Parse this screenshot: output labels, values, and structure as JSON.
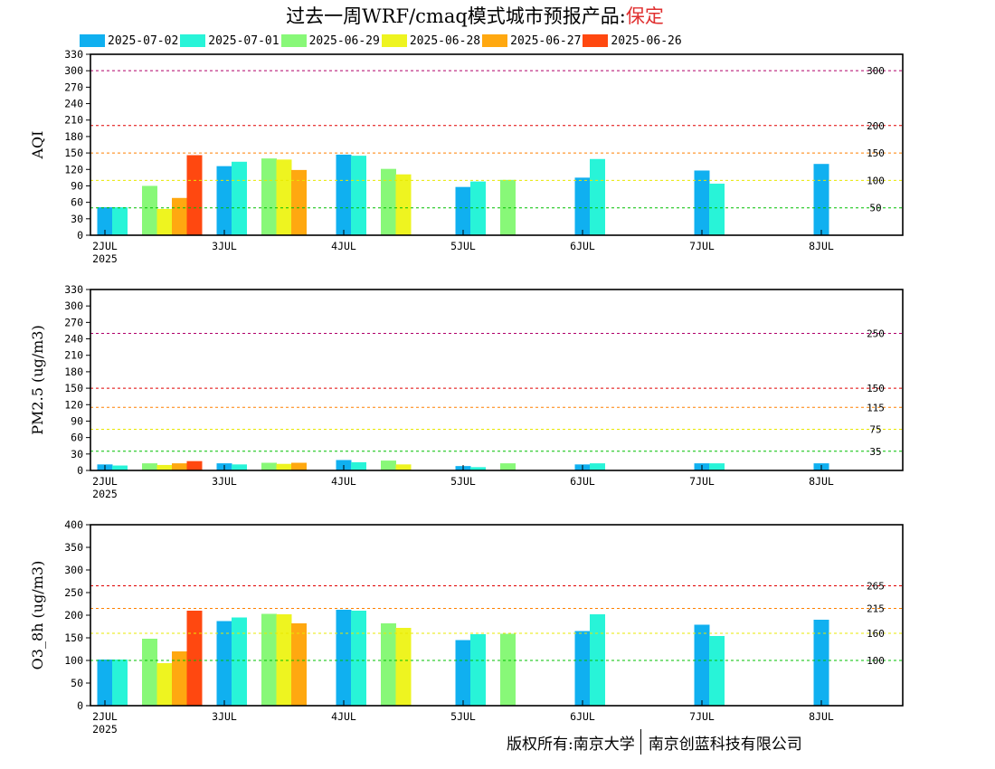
{
  "title": {
    "prefix": "过去一周WRF/cmaq模式城市预报产品:",
    "city": "保定"
  },
  "copyright": {
    "left": "版权所有:南京大学",
    "right": "南京创蓝科技有限公司"
  },
  "legend": [
    {
      "label": "2025-07-02",
      "color": "#10b0f0"
    },
    {
      "label": "2025-07-01",
      "color": "#28f4d8"
    },
    {
      "label": "2025-06-29",
      "color": "#88f878"
    },
    {
      "label": "2025-06-28",
      "color": "#eef420"
    },
    {
      "label": "2025-06-27",
      "color": "#ffa810"
    },
    {
      "label": "2025-06-26",
      "color": "#ff4810"
    }
  ],
  "chart_data": [
    {
      "type": "bar",
      "ylabel": "AQI",
      "ylim": [
        0,
        330
      ],
      "yticks": [
        0,
        30,
        60,
        90,
        120,
        150,
        180,
        210,
        240,
        270,
        300,
        330
      ],
      "xticks": [
        {
          "label": "2JUL",
          "sub": "2025",
          "x": 0
        },
        {
          "label": "3JUL",
          "x": 1
        },
        {
          "label": "4JUL",
          "x": 2
        },
        {
          "label": "5JUL",
          "x": 3
        },
        {
          "label": "6JUL",
          "x": 4
        },
        {
          "label": "7JUL",
          "x": 5
        },
        {
          "label": "8JUL",
          "x": 6
        }
      ],
      "thresholds": [
        {
          "value": 300,
          "label": "300",
          "color": "#b0006a"
        },
        {
          "value": 200,
          "label": "200",
          "color": "#e00000"
        },
        {
          "value": 150,
          "label": "150",
          "color": "#ff8000"
        },
        {
          "value": 100,
          "label": "100",
          "color": "#e8e800"
        },
        {
          "value": 50,
          "label": "50",
          "color": "#00c000"
        }
      ],
      "series": [
        {
          "name": "2025-07-02",
          "x": [
            0,
            1,
            2,
            3,
            4,
            5,
            6
          ],
          "values": [
            51,
            126,
            147,
            88,
            105,
            118,
            130
          ]
        },
        {
          "name": "2025-07-01",
          "x": [
            0.125,
            1.125,
            2.125,
            3.125,
            4.125,
            5.125
          ],
          "values": [
            51,
            134,
            145,
            98,
            139,
            94
          ]
        },
        {
          "name": "2025-06-29",
          "x": [
            0.375,
            1.375,
            2.375,
            3.375
          ],
          "values": [
            90,
            140,
            121,
            101
          ]
        },
        {
          "name": "2025-06-28",
          "x": [
            0.5,
            1.5,
            2.5
          ],
          "values": [
            48,
            138,
            111
          ]
        },
        {
          "name": "2025-06-27",
          "x": [
            0.625,
            1.625
          ],
          "values": [
            68,
            119
          ]
        },
        {
          "name": "2025-06-26",
          "x": [
            0.75
          ],
          "values": [
            146
          ]
        }
      ]
    },
    {
      "type": "bar",
      "ylabel": "PM2.5 (ug/m3)",
      "ylim": [
        0,
        330
      ],
      "yticks": [
        0,
        30,
        60,
        90,
        120,
        150,
        180,
        210,
        240,
        270,
        300,
        330
      ],
      "xticks": [
        {
          "label": "2JUL",
          "sub": "2025",
          "x": 0
        },
        {
          "label": "3JUL",
          "x": 1
        },
        {
          "label": "4JUL",
          "x": 2
        },
        {
          "label": "5JUL",
          "x": 3
        },
        {
          "label": "6JUL",
          "x": 4
        },
        {
          "label": "7JUL",
          "x": 5
        },
        {
          "label": "8JUL",
          "x": 6
        }
      ],
      "thresholds": [
        {
          "value": 250,
          "label": "250",
          "color": "#b0006a"
        },
        {
          "value": 150,
          "label": "150",
          "color": "#e00000"
        },
        {
          "value": 115,
          "label": "115",
          "color": "#ff8000"
        },
        {
          "value": 75,
          "label": "75",
          "color": "#e8e800"
        },
        {
          "value": 35,
          "label": "35",
          "color": "#00c000"
        }
      ],
      "series": [
        {
          "name": "2025-07-02",
          "x": [
            0,
            1,
            2,
            3,
            4,
            5,
            6
          ],
          "values": [
            11,
            13,
            19,
            8,
            11,
            13,
            13
          ]
        },
        {
          "name": "2025-07-01",
          "x": [
            0.125,
            1.125,
            2.125,
            3.125,
            4.125,
            5.125
          ],
          "values": [
            9,
            11,
            15,
            6,
            13,
            13
          ]
        },
        {
          "name": "2025-06-29",
          "x": [
            0.375,
            1.375,
            2.375,
            3.375
          ],
          "values": [
            13,
            14,
            18,
            13
          ]
        },
        {
          "name": "2025-06-28",
          "x": [
            0.5,
            1.5,
            2.5
          ],
          "values": [
            10,
            12,
            11
          ]
        },
        {
          "name": "2025-06-27",
          "x": [
            0.625,
            1.625
          ],
          "values": [
            13,
            14
          ]
        },
        {
          "name": "2025-06-26",
          "x": [
            0.75
          ],
          "values": [
            17
          ]
        }
      ]
    },
    {
      "type": "bar",
      "ylabel": "O3_8h (ug/m3)",
      "ylim": [
        0,
        400
      ],
      "yticks": [
        0,
        50,
        100,
        150,
        200,
        250,
        300,
        350,
        400
      ],
      "xticks": [
        {
          "label": "2JUL",
          "sub": "2025",
          "x": 0
        },
        {
          "label": "3JUL",
          "x": 1
        },
        {
          "label": "4JUL",
          "x": 2
        },
        {
          "label": "5JUL",
          "x": 3
        },
        {
          "label": "6JUL",
          "x": 4
        },
        {
          "label": "7JUL",
          "x": 5
        },
        {
          "label": "8JUL",
          "x": 6
        }
      ],
      "thresholds": [
        {
          "value": 265,
          "label": "265",
          "color": "#e00000"
        },
        {
          "value": 215,
          "label": "215",
          "color": "#ff8000"
        },
        {
          "value": 160,
          "label": "160",
          "color": "#e8e800"
        },
        {
          "value": 100,
          "label": "100",
          "color": "#00c000"
        }
      ],
      "series": [
        {
          "name": "2025-07-02",
          "x": [
            0,
            1,
            2,
            3,
            4,
            5,
            6
          ],
          "values": [
            102,
            187,
            212,
            145,
            165,
            179,
            190
          ]
        },
        {
          "name": "2025-07-01",
          "x": [
            0.125,
            1.125,
            2.125,
            3.125,
            4.125,
            5.125
          ],
          "values": [
            102,
            195,
            210,
            158,
            202,
            154
          ]
        },
        {
          "name": "2025-06-29",
          "x": [
            0.375,
            1.375,
            2.375,
            3.375
          ],
          "values": [
            148,
            203,
            182,
            159
          ]
        },
        {
          "name": "2025-06-28",
          "x": [
            0.5,
            1.5,
            2.5
          ],
          "values": [
            94,
            202,
            172
          ]
        },
        {
          "name": "2025-06-27",
          "x": [
            0.625,
            1.625
          ],
          "values": [
            120,
            182
          ]
        },
        {
          "name": "2025-06-26",
          "x": [
            0.75
          ],
          "values": [
            210
          ]
        }
      ]
    }
  ]
}
